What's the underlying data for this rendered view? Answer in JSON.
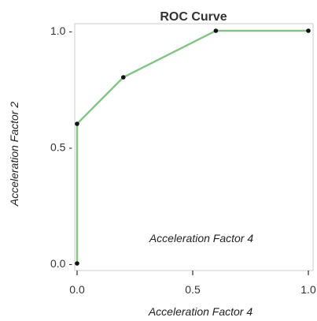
{
  "chart_data": {
    "type": "line",
    "title": "ROC Curve",
    "xlabel": "Acceleration Factor 4",
    "ylabel": "Acceleration Factor 2",
    "annotation": "Acceleration Factor 4",
    "xlim": [
      0,
      1
    ],
    "ylim": [
      0,
      1
    ],
    "x_ticks": [
      0,
      0.5,
      1
    ],
    "y_ticks": [
      0,
      0.5,
      1
    ],
    "x_tick_labels": [
      "0.0",
      "0.5",
      "1.0"
    ],
    "y_tick_labels": [
      "0.0 -",
      "0.5 -",
      "1.0 -"
    ],
    "grid": false,
    "series": [
      {
        "x": [
          0.0,
          0.0,
          0.2,
          0.6,
          1.0
        ],
        "y": [
          0.0,
          0.6,
          0.8,
          1.0,
          1.0
        ],
        "color": "#88c48a",
        "marker_color": "#111111"
      }
    ]
  }
}
